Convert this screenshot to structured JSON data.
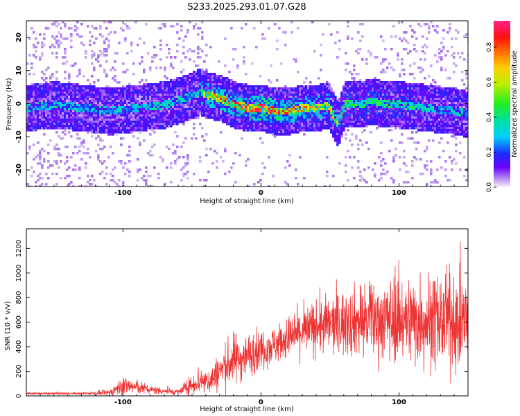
{
  "title": "S233.2025.293.01.07.G28",
  "colors": {
    "snr_line": "#ee3333",
    "spectrogram_trace": "#ee2020",
    "axis": "#000000"
  },
  "chart_data": [
    {
      "type": "heatmap",
      "name": "spectrogram",
      "xlabel": "Height of straight line (km)",
      "ylabel": "Frequency (Hz)",
      "xlim": [
        -170,
        150
      ],
      "ylim": [
        -25,
        25
      ],
      "xticks": [
        -100,
        0,
        100
      ],
      "yticks": [
        -20,
        -10,
        0,
        10,
        20
      ],
      "colorbar": {
        "label": "Normalized spectral amplitude",
        "range": [
          0,
          0.95
        ],
        "ticks": [
          "0.0",
          "0.2",
          "0.4",
          "0.6",
          "0.8"
        ],
        "tick_values": [
          0,
          0.2,
          0.4,
          0.6,
          0.8
        ]
      },
      "ridge": {
        "x": [
          -170,
          -150,
          -130,
          -110,
          -90,
          -70,
          -55,
          -45,
          -40,
          -30,
          -20,
          -10,
          0,
          10,
          20,
          30,
          40,
          48,
          55,
          60,
          70,
          80,
          90,
          100,
          120,
          140,
          150
        ],
        "freq": [
          -1,
          0,
          -1,
          -2,
          -1,
          0,
          2,
          4,
          3,
          2,
          0,
          -1,
          -1,
          -2,
          -2,
          -1,
          -1,
          0,
          -6,
          0,
          0,
          1,
          0,
          0,
          -1,
          -2,
          -3
        ]
      },
      "grid": false,
      "legend": "none"
    },
    {
      "type": "line",
      "name": "snr",
      "xlabel": "Height of straight line (km)",
      "ylabel": "SNR (10 * v/v)",
      "xlim": [
        -170,
        150
      ],
      "ylim": [
        0,
        1360
      ],
      "xticks": [
        -100,
        0,
        100
      ],
      "yticks": [
        0,
        200,
        400,
        600,
        800,
        1000,
        1200
      ],
      "envelope": {
        "x": [
          -170,
          -130,
          -110,
          -100,
          -90,
          -80,
          -60,
          -50,
          -45,
          -40,
          -35,
          -30,
          -25,
          -20,
          -10,
          0,
          10,
          20,
          30,
          40,
          50,
          60,
          70,
          80,
          90,
          100,
          110,
          120,
          130,
          140,
          150
        ],
        "mean": [
          20,
          20,
          25,
          85,
          70,
          50,
          30,
          90,
          130,
          120,
          140,
          200,
          250,
          290,
          330,
          380,
          420,
          470,
          520,
          560,
          580,
          600,
          610,
          610,
          620,
          630,
          620,
          620,
          610,
          600,
          600
        ],
        "amplitude": [
          8,
          8,
          20,
          70,
          50,
          30,
          20,
          70,
          110,
          90,
          110,
          130,
          160,
          180,
          150,
          140,
          130,
          150,
          170,
          190,
          210,
          230,
          250,
          270,
          280,
          300,
          320,
          330,
          330,
          320,
          320
        ]
      },
      "grid": false,
      "legend": "none"
    }
  ]
}
